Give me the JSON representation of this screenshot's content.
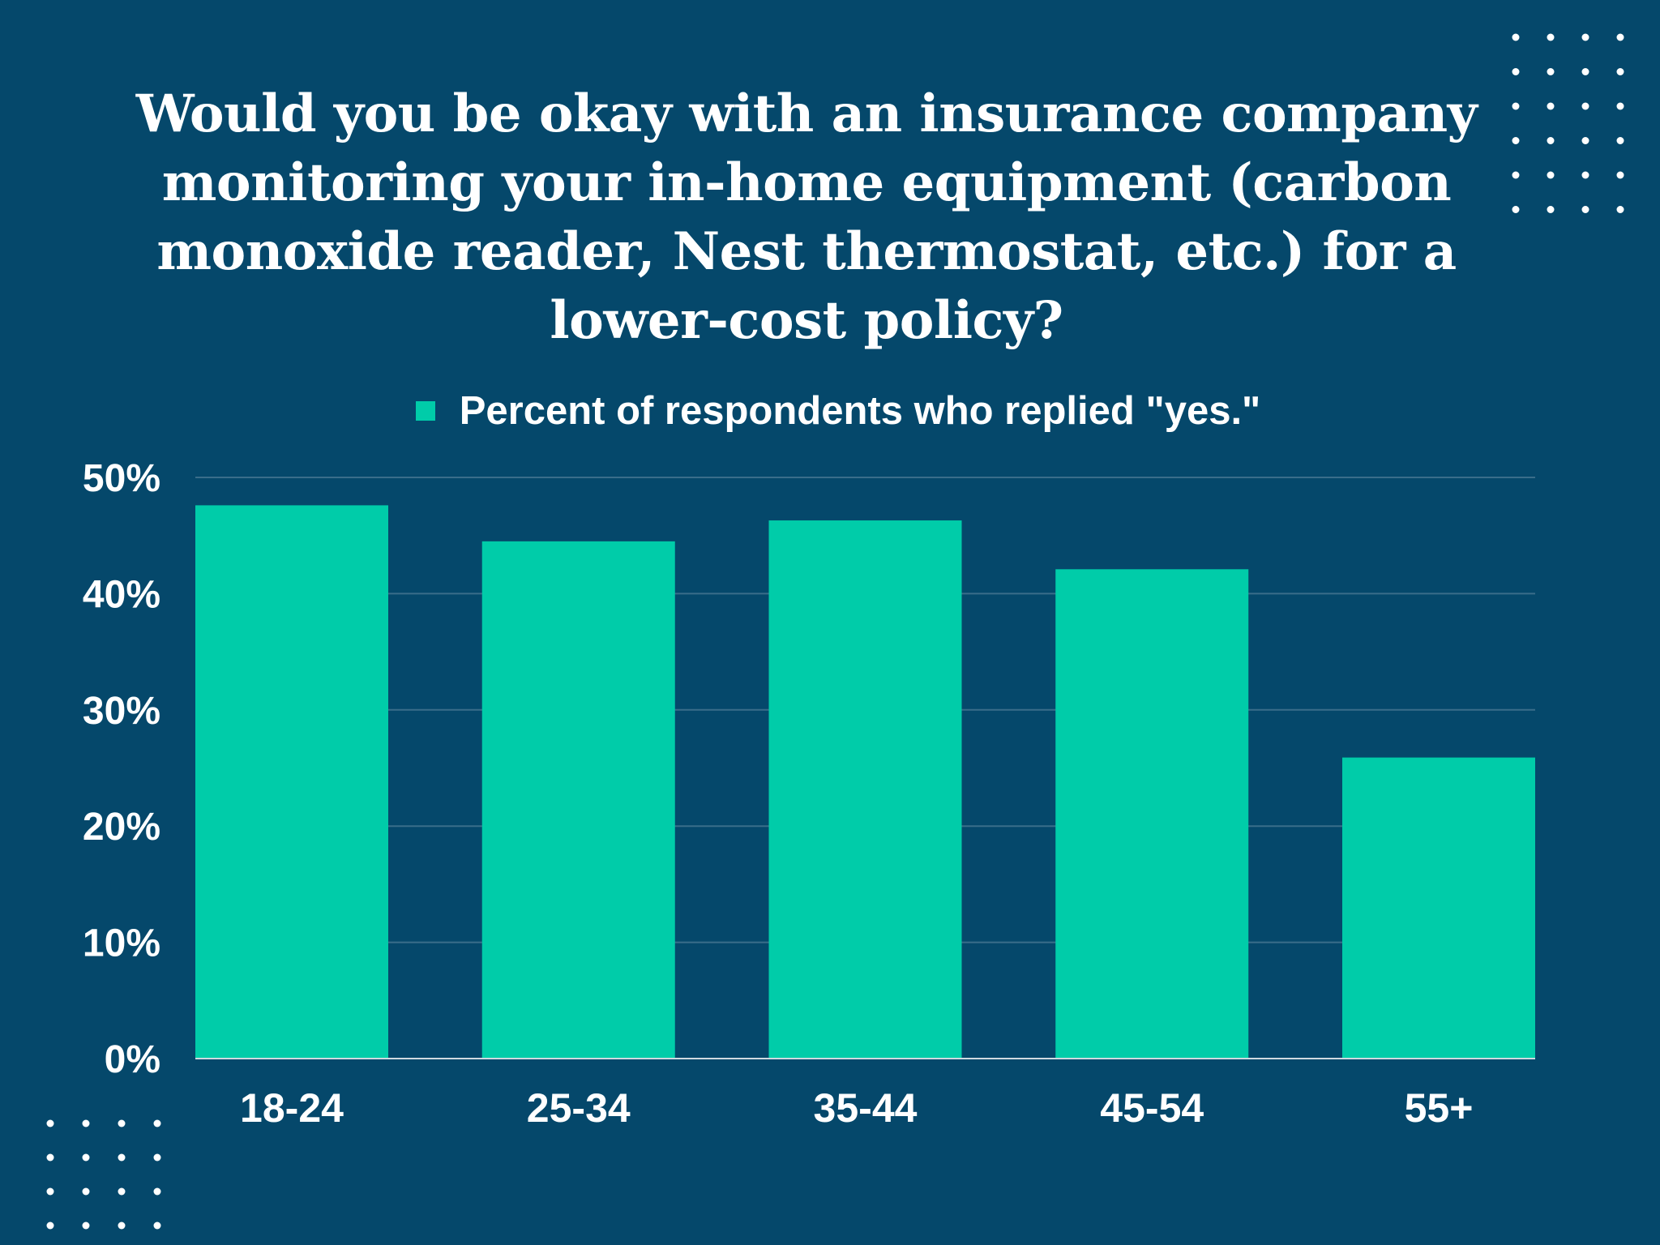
{
  "colors": {
    "background": "#05486b",
    "bar": "#00cca9",
    "text": "#ffffff",
    "grid": "#3a6d8a",
    "dots": "#ffffff"
  },
  "chart_data": {
    "type": "bar",
    "title": "Would you be okay with an insurance company monitoring your in-home equipment (carbon monoxide reader, Nest thermostat, etc.) for a lower-cost policy?",
    "categories": [
      "18-24",
      "25-34",
      "35-44",
      "45-54",
      "55+"
    ],
    "series": [
      {
        "name": "Percent of respondents who replied \"yes.\"",
        "values": [
          47.6,
          44.5,
          46.3,
          42.1,
          25.9
        ]
      }
    ],
    "yticks": [
      "0%",
      "10%",
      "20%",
      "30%",
      "40%",
      "50%"
    ],
    "ylim": [
      0,
      50
    ],
    "grid": true,
    "legend": "top-center"
  }
}
